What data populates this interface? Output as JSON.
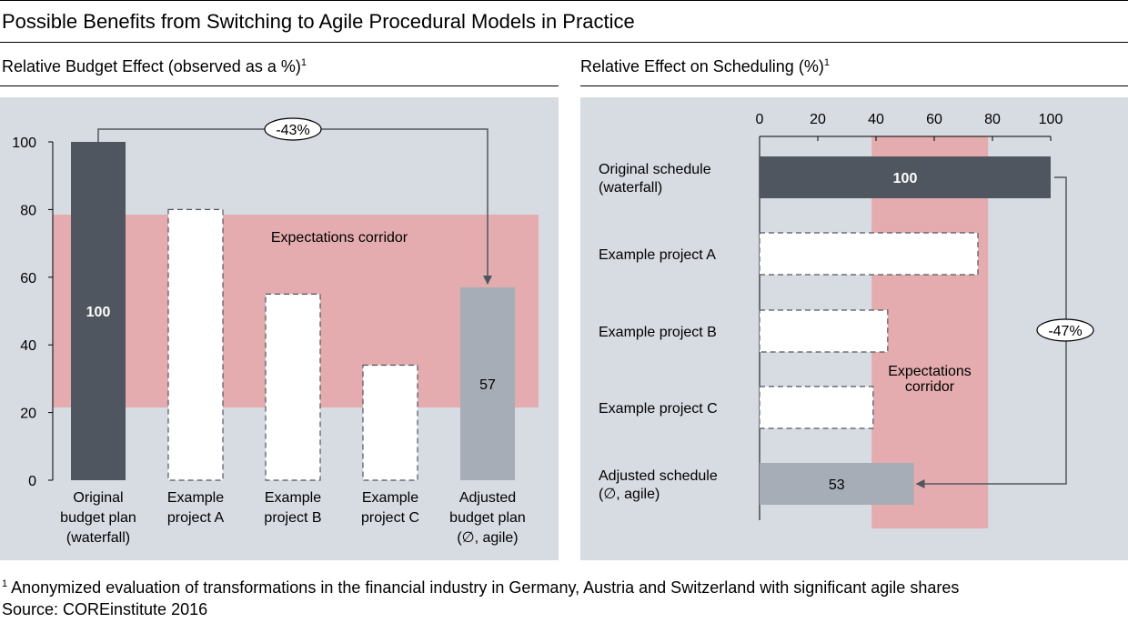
{
  "title": "Possible Benefits from Switching to Agile Procedural Models in Practice",
  "left_subtitle": "Relative Budget Effect (observed as a %)",
  "right_subtitle": "Relative Effect on Scheduling (%)",
  "footnote_marker": "1",
  "footnote_text": "Anonymized evaluation of transformations in the financial industry in Germany, Austria and Switzerland with significant agile shares",
  "source": "Source: COREinstitute 2016",
  "colors": {
    "panel_bg": "#d7dbe2",
    "corridor": "#e4acae",
    "dark_bar": "#505660",
    "light_bar": "#a6adb7",
    "white_bar": "#ffffff"
  },
  "chart_data": [
    {
      "type": "bar",
      "orientation": "vertical",
      "ylim": [
        0,
        100
      ],
      "yticks": [
        "0",
        "20",
        "40",
        "60",
        "80",
        "100"
      ],
      "categories": [
        [
          "Original",
          "budget plan",
          "(waterfall)"
        ],
        [
          "Example",
          "project A"
        ],
        [
          "Example",
          "project B"
        ],
        [
          "Example",
          "project C"
        ],
        [
          "Adjusted",
          "budget plan",
          "(∅, agile)"
        ]
      ],
      "values": [
        100,
        80,
        55,
        34,
        57
      ],
      "styles": [
        "dark",
        "dashed",
        "dashed",
        "dashed",
        "light"
      ],
      "data_labels": [
        "100",
        "",
        "",
        "",
        "57"
      ],
      "corridor": {
        "label": "Expectations corridor",
        "range": [
          21.5,
          78.5
        ]
      },
      "annotation": {
        "label": "-43%",
        "from": 0,
        "to": 4
      }
    },
    {
      "type": "bar",
      "orientation": "horizontal",
      "xlim": [
        0,
        100
      ],
      "xticks": [
        "0",
        "20",
        "40",
        "60",
        "80",
        "100"
      ],
      "categories": [
        [
          "Original schedule",
          "(waterfall)"
        ],
        [
          "Example project A"
        ],
        [
          "Example project B"
        ],
        [
          "Example project C"
        ],
        [
          "Adjusted schedule",
          "(∅, agile)"
        ]
      ],
      "values": [
        100,
        75,
        44,
        39,
        53
      ],
      "styles": [
        "dark",
        "dashed",
        "dashed",
        "dashed",
        "light"
      ],
      "data_labels": [
        "100",
        "",
        "",
        "",
        "53"
      ],
      "corridor": {
        "label": [
          "Expectations",
          "corridor"
        ],
        "range": [
          38.5,
          78.5
        ]
      },
      "annotation": {
        "label": "-47%",
        "from": 0,
        "to": 4
      }
    }
  ]
}
